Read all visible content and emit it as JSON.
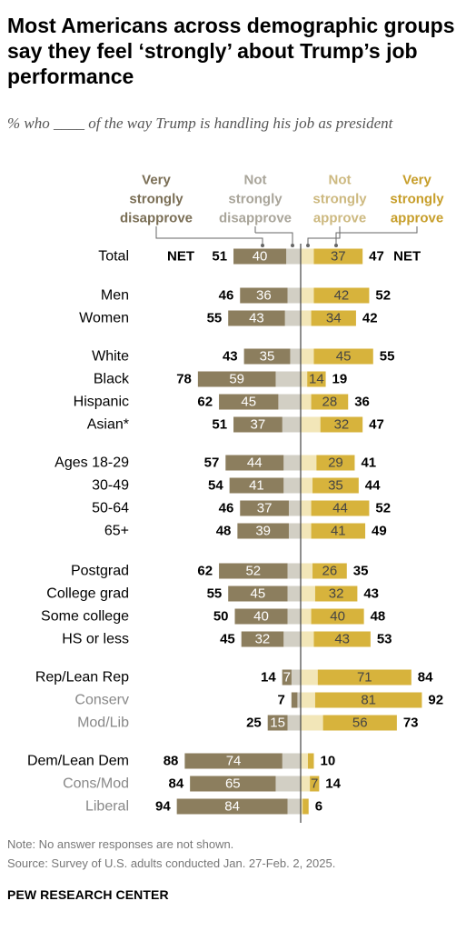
{
  "title": "Most Americans across demographic groups say they feel ‘strongly’ about Trump’s job performance",
  "subtitle": "% who ____ of the way Trump is handling his job as president",
  "note": "Note: No answer responses are not shown.",
  "source": "Source: Survey of U.S. adults conducted Jan. 27-Feb. 2, 2025.",
  "brand": "PEW RESEARCH CENTER",
  "colors": {
    "very_disapprove": "#8C7E5E",
    "not_strongly_disapprove": "#D2CFC4",
    "not_strongly_approve": "#F2E6B8",
    "very_strongly_approve": "#D7B33C",
    "center_line": "#444444",
    "label_very_disapprove": "#7A6E55",
    "label_not_disapprove": "#A9A59A",
    "label_not_approve": "#CDB980",
    "label_very_approve": "#C79E2A",
    "subgroup_label": "#888888"
  },
  "chart_data": {
    "type": "diverging_stacked_bar",
    "headers": {
      "very_disapprove": [
        "Very",
        "strongly",
        "disapprove"
      ],
      "not_strongly_disapprove": [
        "Not",
        "strongly",
        "disapprove"
      ],
      "not_strongly_approve": [
        "Not",
        "strongly",
        "approve"
      ],
      "very_strongly_approve": [
        "Very",
        "strongly",
        "approve"
      ]
    },
    "net_label": "NET",
    "rows": [
      {
        "label": "Total",
        "disapprove_net": 51,
        "very_disapprove": 40,
        "approve_net": 47,
        "very_approve": 37,
        "net": true
      },
      {
        "label": "Men",
        "disapprove_net": 46,
        "very_disapprove": 36,
        "approve_net": 52,
        "very_approve": 42
      },
      {
        "label": "Women",
        "disapprove_net": 55,
        "very_disapprove": 43,
        "approve_net": 42,
        "very_approve": 34
      },
      {
        "label": "White",
        "disapprove_net": 43,
        "very_disapprove": 35,
        "approve_net": 55,
        "very_approve": 45
      },
      {
        "label": "Black",
        "disapprove_net": 78,
        "very_disapprove": 59,
        "approve_net": 19,
        "very_approve": 14
      },
      {
        "label": "Hispanic",
        "disapprove_net": 62,
        "very_disapprove": 45,
        "approve_net": 36,
        "very_approve": 28
      },
      {
        "label": "Asian*",
        "disapprove_net": 51,
        "very_disapprove": 37,
        "approve_net": 47,
        "very_approve": 32
      },
      {
        "label": "Ages 18-29",
        "disapprove_net": 57,
        "very_disapprove": 44,
        "approve_net": 41,
        "very_approve": 29
      },
      {
        "label": "30-49",
        "disapprove_net": 54,
        "very_disapprove": 41,
        "approve_net": 44,
        "very_approve": 35
      },
      {
        "label": "50-64",
        "disapprove_net": 46,
        "very_disapprove": 37,
        "approve_net": 52,
        "very_approve": 44
      },
      {
        "label": "65+",
        "disapprove_net": 48,
        "very_disapprove": 39,
        "approve_net": 49,
        "very_approve": 41
      },
      {
        "label": "Postgrad",
        "disapprove_net": 62,
        "very_disapprove": 52,
        "approve_net": 35,
        "very_approve": 26
      },
      {
        "label": "College grad",
        "disapprove_net": 55,
        "very_disapprove": 45,
        "approve_net": 43,
        "very_approve": 32
      },
      {
        "label": "Some college",
        "disapprove_net": 50,
        "very_disapprove": 40,
        "approve_net": 48,
        "very_approve": 40
      },
      {
        "label": "HS or less",
        "disapprove_net": 45,
        "very_disapprove": 32,
        "approve_net": 53,
        "very_approve": 43
      },
      {
        "label": "Rep/Lean Rep",
        "disapprove_net": 14,
        "very_disapprove": 7,
        "approve_net": 84,
        "very_approve": 71
      },
      {
        "label": "Conserv",
        "disapprove_net": 7,
        "very_disapprove": null,
        "approve_net": 92,
        "very_approve": 81,
        "sub": true
      },
      {
        "label": "Mod/Lib",
        "disapprove_net": 25,
        "very_disapprove": 15,
        "approve_net": 73,
        "very_approve": 56,
        "sub": true
      },
      {
        "label": "Dem/Lean Dem",
        "disapprove_net": 88,
        "very_disapprove": 74,
        "approve_net": 10,
        "very_approve": null
      },
      {
        "label": "Cons/Mod",
        "disapprove_net": 84,
        "very_disapprove": 65,
        "approve_net": 14,
        "very_approve": 7,
        "sub": true
      },
      {
        "label": "Liberal",
        "disapprove_net": 94,
        "very_disapprove": 84,
        "approve_net": 6,
        "very_approve": null,
        "sub": true
      }
    ]
  }
}
